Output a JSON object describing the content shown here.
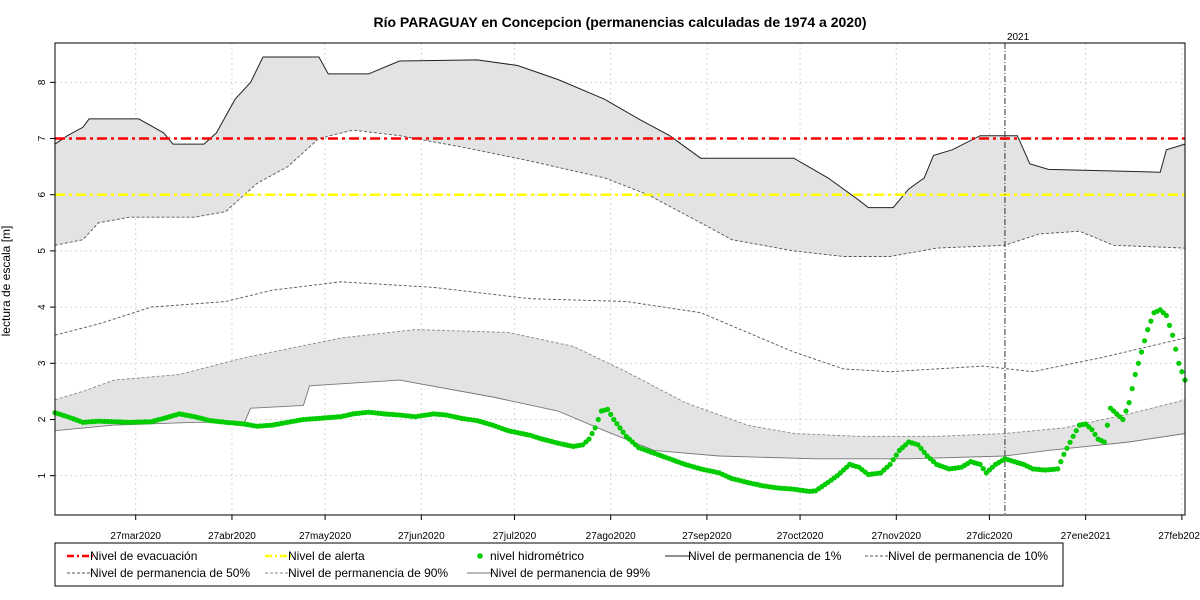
{
  "chart_data": {
    "type": "line",
    "title": "Río PARAGUAY en Concepcion (permanencias calculadas de 1974 a 2020)",
    "ylabel": "lectura de escala [m]",
    "xlabel": "",
    "x_start": "2020-03-01",
    "x_end": "2021-02-28",
    "ylim": [
      0.3,
      8.7
    ],
    "yticks": [
      1,
      2,
      3,
      4,
      5,
      6,
      7,
      8
    ],
    "xticks": [
      {
        "date": "2020-03-27",
        "label": "27mar2020"
      },
      {
        "date": "2020-04-27",
        "label": "27abr2020"
      },
      {
        "date": "2020-05-27",
        "label": "27may2020"
      },
      {
        "date": "2020-06-27",
        "label": "27jun2020"
      },
      {
        "date": "2020-07-27",
        "label": "27jul2020"
      },
      {
        "date": "2020-08-27",
        "label": "27ago2020"
      },
      {
        "date": "2020-09-27",
        "label": "27sep2020"
      },
      {
        "date": "2020-10-27",
        "label": "27oct2020"
      },
      {
        "date": "2020-11-27",
        "label": "27nov2020"
      },
      {
        "date": "2020-12-27",
        "label": "27dic2020"
      },
      {
        "date": "2021-01-27",
        "label": "27ene2021"
      },
      {
        "date": "2021-02-27",
        "label": "27feb2021"
      }
    ],
    "grid": true,
    "year_marker": {
      "date": "2021-01-01",
      "label": "2021"
    },
    "thresholds": [
      {
        "name": "Nivel de evacuación",
        "value": 7.0,
        "color": "#ff0000"
      },
      {
        "name": "Nivel de alerta",
        "value": 6.0,
        "color": "#ffff00"
      }
    ],
    "series": [
      {
        "name": "Nivel de permanencia de 1%",
        "color": "#222222",
        "points": [
          [
            "2020-03-01",
            6.9
          ],
          [
            "2020-03-05",
            7.05
          ],
          [
            "2020-03-10",
            7.2
          ],
          [
            "2020-03-12",
            7.35
          ],
          [
            "2020-03-28",
            7.35
          ],
          [
            "2020-04-05",
            7.1
          ],
          [
            "2020-04-08",
            6.9
          ],
          [
            "2020-04-18",
            6.9
          ],
          [
            "2020-04-22",
            7.1
          ],
          [
            "2020-04-28",
            7.7
          ],
          [
            "2020-05-03",
            8.0
          ],
          [
            "2020-05-07",
            8.45
          ],
          [
            "2020-05-25",
            8.45
          ],
          [
            "2020-05-28",
            8.15
          ],
          [
            "2020-06-10",
            8.15
          ],
          [
            "2020-06-20",
            8.38
          ],
          [
            "2020-07-15",
            8.4
          ],
          [
            "2020-07-28",
            8.3
          ],
          [
            "2020-08-10",
            8.05
          ],
          [
            "2020-08-25",
            7.7
          ],
          [
            "2020-09-05",
            7.35
          ],
          [
            "2020-09-15",
            7.05
          ],
          [
            "2020-09-25",
            6.65
          ],
          [
            "2020-10-25",
            6.65
          ],
          [
            "2020-11-05",
            6.3
          ],
          [
            "2020-11-15",
            5.9
          ],
          [
            "2020-11-18",
            5.77
          ],
          [
            "2020-11-26",
            5.77
          ],
          [
            "2020-12-01",
            6.1
          ],
          [
            "2020-12-06",
            6.3
          ],
          [
            "2020-12-09",
            6.7
          ],
          [
            "2020-12-15",
            6.8
          ],
          [
            "2020-12-24",
            7.05
          ],
          [
            "2021-01-05",
            7.05
          ],
          [
            "2021-01-09",
            6.55
          ],
          [
            "2021-01-15",
            6.45
          ],
          [
            "2021-02-20",
            6.4
          ],
          [
            "2021-02-22",
            6.8
          ],
          [
            "2021-02-28",
            6.9
          ]
        ]
      },
      {
        "name": "Nivel de permanencia de 10%",
        "color": "#555555",
        "points": [
          [
            "2020-03-01",
            5.1
          ],
          [
            "2020-03-10",
            5.2
          ],
          [
            "2020-03-15",
            5.5
          ],
          [
            "2020-03-25",
            5.6
          ],
          [
            "2020-04-15",
            5.6
          ],
          [
            "2020-04-25",
            5.7
          ],
          [
            "2020-05-05",
            6.2
          ],
          [
            "2020-05-15",
            6.5
          ],
          [
            "2020-05-25",
            7.0
          ],
          [
            "2020-06-05",
            7.15
          ],
          [
            "2020-06-20",
            7.05
          ],
          [
            "2020-07-10",
            6.85
          ],
          [
            "2020-08-01",
            6.6
          ],
          [
            "2020-08-25",
            6.3
          ],
          [
            "2020-09-08",
            6.0
          ],
          [
            "2020-09-25",
            5.5
          ],
          [
            "2020-10-05",
            5.2
          ],
          [
            "2020-10-25",
            5.0
          ],
          [
            "2020-11-10",
            4.9
          ],
          [
            "2020-11-25",
            4.9
          ],
          [
            "2020-12-10",
            5.05
          ],
          [
            "2021-01-01",
            5.1
          ],
          [
            "2021-01-12",
            5.3
          ],
          [
            "2021-01-25",
            5.35
          ],
          [
            "2021-02-05",
            5.1
          ],
          [
            "2021-02-28",
            5.05
          ]
        ]
      },
      {
        "name": "Nivel de permanencia de 50%",
        "color": "#555555",
        "points": [
          [
            "2020-03-01",
            3.5
          ],
          [
            "2020-03-15",
            3.7
          ],
          [
            "2020-04-01",
            4.0
          ],
          [
            "2020-04-25",
            4.1
          ],
          [
            "2020-05-10",
            4.3
          ],
          [
            "2020-06-01",
            4.45
          ],
          [
            "2020-07-01",
            4.35
          ],
          [
            "2020-08-01",
            4.15
          ],
          [
            "2020-09-01",
            4.1
          ],
          [
            "2020-09-25",
            3.9
          ],
          [
            "2020-10-25",
            3.2
          ],
          [
            "2020-11-10",
            2.9
          ],
          [
            "2020-11-25",
            2.85
          ],
          [
            "2020-12-10",
            2.9
          ],
          [
            "2020-12-25",
            2.95
          ],
          [
            "2021-01-10",
            2.85
          ],
          [
            "2021-02-01",
            3.1
          ],
          [
            "2021-02-28",
            3.45
          ]
        ]
      },
      {
        "name": "Nivel de permanencia de 90%",
        "color": "#888888",
        "points": [
          [
            "2020-03-01",
            2.35
          ],
          [
            "2020-03-10",
            2.5
          ],
          [
            "2020-03-20",
            2.7
          ],
          [
            "2020-04-10",
            2.8
          ],
          [
            "2020-05-01",
            3.1
          ],
          [
            "2020-06-01",
            3.45
          ],
          [
            "2020-06-25",
            3.6
          ],
          [
            "2020-07-25",
            3.55
          ],
          [
            "2020-08-15",
            3.3
          ],
          [
            "2020-09-01",
            2.85
          ],
          [
            "2020-09-20",
            2.3
          ],
          [
            "2020-10-10",
            1.9
          ],
          [
            "2020-10-25",
            1.75
          ],
          [
            "2020-11-15",
            1.7
          ],
          [
            "2020-12-10",
            1.7
          ],
          [
            "2021-01-01",
            1.75
          ],
          [
            "2021-01-20",
            1.85
          ],
          [
            "2021-02-10",
            2.1
          ],
          [
            "2021-02-28",
            2.35
          ]
        ]
      },
      {
        "name": "Nivel de permanencia de 99%",
        "color": "#777777",
        "points": [
          [
            "2020-03-01",
            1.8
          ],
          [
            "2020-03-20",
            1.9
          ],
          [
            "2020-04-15",
            1.95
          ],
          [
            "2020-05-01",
            1.95
          ],
          [
            "2020-05-03",
            2.2
          ],
          [
            "2020-05-20",
            2.25
          ],
          [
            "2020-05-22",
            2.6
          ],
          [
            "2020-06-20",
            2.7
          ],
          [
            "2020-07-20",
            2.4
          ],
          [
            "2020-08-10",
            2.15
          ],
          [
            "2020-08-25",
            1.8
          ],
          [
            "2020-09-10",
            1.45
          ],
          [
            "2020-10-01",
            1.35
          ],
          [
            "2020-11-01",
            1.3
          ],
          [
            "2020-12-01",
            1.3
          ],
          [
            "2021-01-01",
            1.35
          ],
          [
            "2021-01-15",
            1.45
          ],
          [
            "2021-02-10",
            1.6
          ],
          [
            "2021-02-28",
            1.75
          ]
        ]
      }
    ],
    "band": {
      "upper": "Nivel de permanencia de 1%",
      "lower": "Nivel de permanencia de 10%",
      "color": "#e3e3e3"
    },
    "band2": {
      "upper": "Nivel de permanencia de 90%",
      "lower": "Nivel de permanencia de 99%",
      "color": "#e3e3e3"
    },
    "observed": {
      "name": "nivel hidrométrico",
      "color": "#00cc00",
      "points": [
        [
          "2020-03-01",
          2.12
        ],
        [
          "2020-03-05",
          2.05
        ],
        [
          "2020-03-10",
          1.95
        ],
        [
          "2020-03-15",
          1.97
        ],
        [
          "2020-03-20",
          1.96
        ],
        [
          "2020-03-25",
          1.95
        ],
        [
          "2020-04-01",
          1.96
        ],
        [
          "2020-04-05",
          2.02
        ],
        [
          "2020-04-10",
          2.1
        ],
        [
          "2020-04-15",
          2.05
        ],
        [
          "2020-04-20",
          1.98
        ],
        [
          "2020-04-25",
          1.95
        ],
        [
          "2020-05-01",
          1.92
        ],
        [
          "2020-05-05",
          1.88
        ],
        [
          "2020-05-10",
          1.9
        ],
        [
          "2020-05-15",
          1.95
        ],
        [
          "2020-05-20",
          2.0
        ],
        [
          "2020-05-25",
          2.02
        ],
        [
          "2020-06-01",
          2.05
        ],
        [
          "2020-06-05",
          2.1
        ],
        [
          "2020-06-10",
          2.13
        ],
        [
          "2020-06-15",
          2.1
        ],
        [
          "2020-06-20",
          2.08
        ],
        [
          "2020-06-25",
          2.05
        ],
        [
          "2020-07-01",
          2.1
        ],
        [
          "2020-07-05",
          2.08
        ],
        [
          "2020-07-10",
          2.02
        ],
        [
          "2020-07-15",
          1.98
        ],
        [
          "2020-07-20",
          1.9
        ],
        [
          "2020-07-25",
          1.8
        ],
        [
          "2020-08-01",
          1.72
        ],
        [
          "2020-08-05",
          1.65
        ],
        [
          "2020-08-10",
          1.58
        ],
        [
          "2020-08-15",
          1.52
        ],
        [
          "2020-08-18",
          1.55
        ],
        [
          "2020-08-20",
          1.65
        ],
        [
          "2020-08-22",
          1.85
        ],
        [
          "2020-08-24",
          2.15
        ],
        [
          "2020-08-26",
          2.18
        ],
        [
          "2020-08-28",
          2.0
        ],
        [
          "2020-09-01",
          1.7
        ],
        [
          "2020-09-05",
          1.5
        ],
        [
          "2020-09-10",
          1.4
        ],
        [
          "2020-09-15",
          1.3
        ],
        [
          "2020-09-20",
          1.2
        ],
        [
          "2020-09-25",
          1.12
        ],
        [
          "2020-10-01",
          1.05
        ],
        [
          "2020-10-05",
          0.95
        ],
        [
          "2020-10-10",
          0.88
        ],
        [
          "2020-10-15",
          0.82
        ],
        [
          "2020-10-20",
          0.78
        ],
        [
          "2020-10-25",
          0.76
        ],
        [
          "2020-10-30",
          0.72
        ],
        [
          "2020-11-01",
          0.73
        ],
        [
          "2020-11-05",
          0.88
        ],
        [
          "2020-11-08",
          1.0
        ],
        [
          "2020-11-12",
          1.2
        ],
        [
          "2020-11-15",
          1.15
        ],
        [
          "2020-11-18",
          1.02
        ],
        [
          "2020-11-22",
          1.05
        ],
        [
          "2020-11-25",
          1.2
        ],
        [
          "2020-11-28",
          1.45
        ],
        [
          "2020-12-01",
          1.6
        ],
        [
          "2020-12-04",
          1.55
        ],
        [
          "2020-12-07",
          1.35
        ],
        [
          "2020-12-10",
          1.2
        ],
        [
          "2020-12-14",
          1.12
        ],
        [
          "2020-12-18",
          1.15
        ],
        [
          "2020-12-21",
          1.25
        ],
        [
          "2020-12-24",
          1.2
        ],
        [
          "2020-12-26",
          1.05
        ],
        [
          "2020-12-29",
          1.2
        ],
        [
          "2021-01-01",
          1.3
        ],
        [
          "2021-01-04",
          1.25
        ],
        [
          "2021-01-07",
          1.2
        ],
        [
          "2021-01-10",
          1.12
        ],
        [
          "2021-01-14",
          1.1
        ],
        [
          "2021-01-18",
          1.12
        ],
        [
          "2021-01-20",
          1.38
        ],
        [
          "2021-01-23",
          1.7
        ],
        [
          "2021-01-25",
          1.9
        ],
        [
          "2021-01-27",
          1.92
        ],
        [
          "2021-01-29",
          1.82
        ],
        [
          "2021-01-31",
          1.65
        ],
        [
          "2021-02-02",
          1.6
        ],
        [
          "2021-02-04",
          2.2
        ],
        [
          "2021-02-06",
          2.1
        ],
        [
          "2021-02-08",
          2.0
        ],
        [
          "2021-02-10",
          2.3
        ],
        [
          "2021-02-12",
          2.8
        ],
        [
          "2021-02-14",
          3.2
        ],
        [
          "2021-02-16",
          3.6
        ],
        [
          "2021-02-18",
          3.9
        ],
        [
          "2021-02-20",
          3.95
        ],
        [
          "2021-02-22",
          3.85
        ],
        [
          "2021-02-24",
          3.5
        ],
        [
          "2021-02-26",
          3.0
        ],
        [
          "2021-02-28",
          2.7
        ]
      ]
    },
    "legend_placement": "bottom",
    "legend": [
      {
        "name": "Nivel de evacuación",
        "style": "dashdot",
        "color": "#ff0000"
      },
      {
        "name": "Nivel de alerta",
        "style": "dashdot",
        "color": "#ffff00"
      },
      {
        "name": "nivel hidrométrico",
        "style": "point",
        "color": "#00cc00"
      },
      {
        "name": "Nivel de permanencia de 1%",
        "style": "solid",
        "color": "#222222"
      },
      {
        "name": "Nivel de permanencia de 10%",
        "style": "dashed",
        "color": "#555555"
      },
      {
        "name": "Nivel de permanencia de 50%",
        "style": "dashed",
        "color": "#555555"
      },
      {
        "name": "Nivel de permanencia de 90%",
        "style": "dashed",
        "color": "#888888"
      },
      {
        "name": "Nivel de permanencia de 99%",
        "style": "solid",
        "color": "#777777"
      }
    ]
  }
}
